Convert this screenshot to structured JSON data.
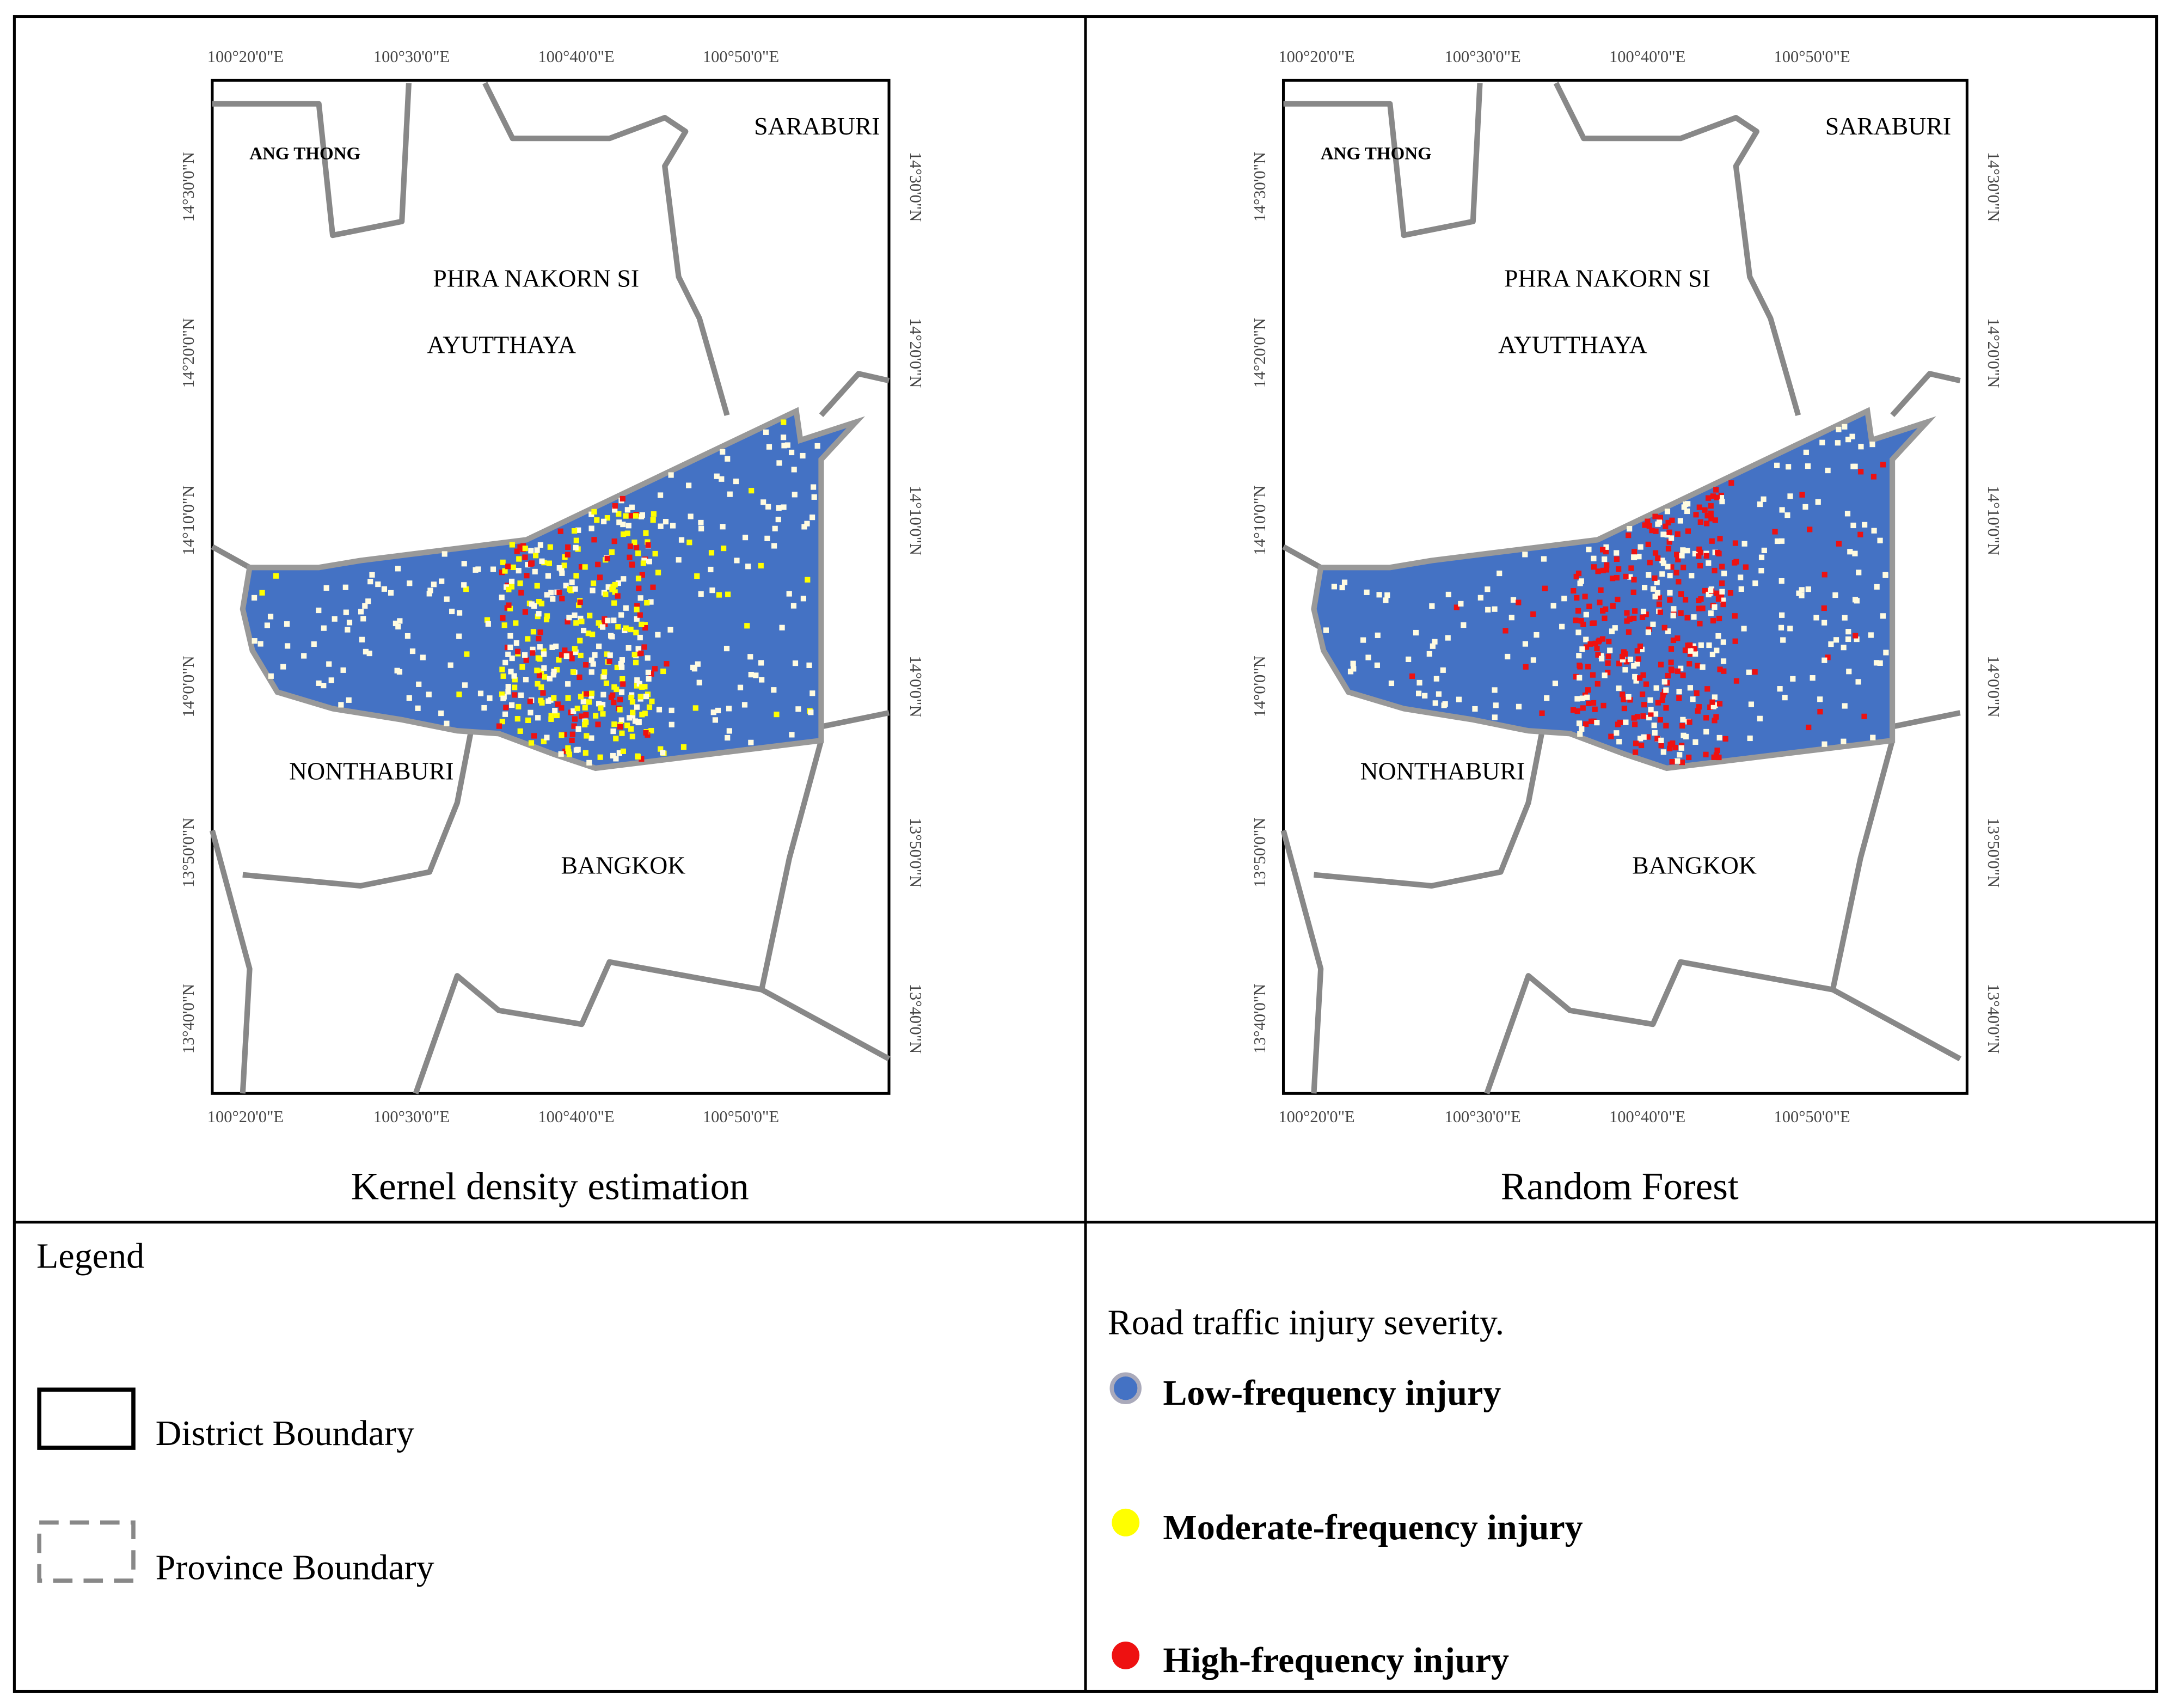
{
  "maps": [
    {
      "title": "Kernel density estimation"
    },
    {
      "title": "Random Forest"
    }
  ],
  "lon_ticks": [
    "100°20'0\"E",
    "100°30'0\"E",
    "100°40'0\"E",
    "100°50'0\"E"
  ],
  "lat_ticks": [
    "14°30'0\"N",
    "14°20'0\"N",
    "14°10'0\"N",
    "14°0'0\"N",
    "13°50'0\"N",
    "13°40'0\"N"
  ],
  "places": [
    "ANG THONG",
    "SARABURI",
    "PHRA NAKORN SI",
    "AYUTTHAYA",
    "NONTHABURI",
    "BANGKOK"
  ],
  "legend": {
    "title": "Legend",
    "boundaries": [
      "District Boundary",
      "Province Boundary"
    ],
    "severity_title": "Road traffic injury severity.",
    "severity": [
      {
        "label": "Low-frequency injury",
        "color": "#4472c4"
      },
      {
        "label": "Moderate-frequency injury",
        "color": "#ffff00"
      },
      {
        "label": "High-frequency injury",
        "color": "#ee1111"
      }
    ]
  }
}
